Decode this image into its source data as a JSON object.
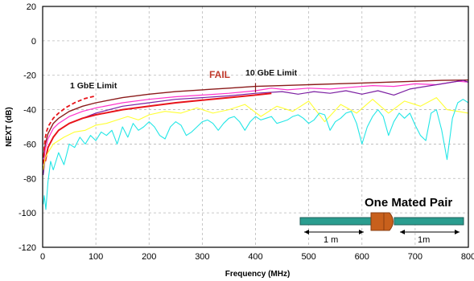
{
  "chart_data": {
    "type": "line",
    "title": "",
    "xlabel": "Frequency (MHz)",
    "ylabel": "NEXT (dB)",
    "xlim": [
      0,
      800
    ],
    "ylim": [
      -120,
      20
    ],
    "x_ticks": [
      0,
      100,
      200,
      300,
      400,
      500,
      600,
      700,
      800
    ],
    "y_ticks": [
      20,
      0,
      -20,
      -40,
      -60,
      -80,
      -100,
      -120
    ],
    "grid": true,
    "colors": {
      "maroon": "#8b1a1a",
      "magenta": "#ff33cc",
      "purple": "#7b1fa2",
      "red": "#e8141a",
      "yellow": "#ffff33",
      "cyan": "#22e6e6",
      "frame": "#000000",
      "grid": "#b8b8b8",
      "fail": "#c0392b",
      "cable": "#2a9d8f",
      "cable_dark": "#1d5e58",
      "connector": "#c8601c"
    },
    "series": [
      {
        "color_key": "maroon",
        "style": "solid",
        "width": 1.4,
        "x": [
          1,
          5,
          10,
          20,
          30,
          50,
          75,
          100,
          150,
          200,
          250,
          300,
          350,
          400,
          450,
          500,
          550,
          600,
          650,
          700,
          750,
          800
        ],
        "y": [
          -68,
          -60,
          -54,
          -48,
          -45,
          -41,
          -38,
          -36,
          -33,
          -31,
          -29.5,
          -28.5,
          -27.5,
          -26.5,
          -26,
          -25.5,
          -25,
          -24.5,
          -24,
          -23.5,
          -23,
          -22.8
        ]
      },
      {
        "color_key": "magenta",
        "style": "solid",
        "width": 1.2,
        "x": [
          1,
          5,
          10,
          20,
          30,
          50,
          75,
          100,
          150,
          200,
          250,
          300,
          350,
          400,
          430,
          460,
          500,
          540,
          580,
          620,
          660,
          700,
          740,
          780,
          800
        ],
        "y": [
          -72,
          -63,
          -57,
          -51,
          -48,
          -44,
          -41,
          -39,
          -36,
          -34,
          -32.5,
          -31.5,
          -30.5,
          -29,
          -27.5,
          -28.5,
          -27.5,
          -28,
          -27,
          -26,
          -26.5,
          -25,
          -25.5,
          -23.5,
          -24
        ]
      },
      {
        "color_key": "purple",
        "style": "solid",
        "width": 1.2,
        "x": [
          1,
          5,
          10,
          20,
          30,
          50,
          75,
          100,
          150,
          200,
          250,
          300,
          350,
          400,
          450,
          480,
          510,
          540,
          570,
          600,
          630,
          660,
          690,
          720,
          760,
          790,
          800
        ],
        "y": [
          -78,
          -68,
          -62,
          -56,
          -52,
          -48,
          -45,
          -42,
          -38,
          -36,
          -34,
          -33,
          -32,
          -30.5,
          -29.5,
          -31,
          -29.5,
          -30.5,
          -29,
          -31,
          -29,
          -31.5,
          -28,
          -26.5,
          -24.5,
          -23,
          -24
        ]
      },
      {
        "color_key": "red",
        "style": "solid",
        "width": 2.0,
        "x": [
          5,
          10,
          20,
          30,
          50,
          75,
          100,
          150,
          200,
          250,
          300,
          350,
          400,
          430
        ],
        "y": [
          -70,
          -62,
          -56,
          -52,
          -48,
          -45,
          -43,
          -40,
          -38,
          -36,
          -34.5,
          -33,
          -31.5,
          -30.5
        ]
      },
      {
        "color_key": "red",
        "style": "dashed",
        "width": 1.8,
        "x": [
          1,
          3,
          5,
          8,
          12,
          20,
          30,
          45,
          60,
          80,
          100
        ],
        "y": [
          -75,
          -62,
          -56,
          -52,
          -49,
          -45,
          -42,
          -38.5,
          -36,
          -33.5,
          -32
        ]
      },
      {
        "color_key": "maroon",
        "style": "solid",
        "width": 1.2,
        "x": [
          400,
          400
        ],
        "y": [
          -24.5,
          -30
        ]
      },
      {
        "color_key": "yellow",
        "style": "solid",
        "width": 1.1,
        "x": [
          1,
          5,
          10,
          20,
          40,
          60,
          80,
          100,
          120,
          140,
          160,
          180,
          200,
          230,
          260,
          290,
          320,
          350,
          380,
          410,
          440,
          470,
          500,
          530,
          560,
          590,
          620,
          650,
          680,
          710,
          740,
          760,
          780,
          800
        ],
        "y": [
          -75,
          -68,
          -65,
          -60,
          -56,
          -53,
          -52,
          -49,
          -48,
          -46,
          -44,
          -46,
          -43,
          -41,
          -42,
          -39,
          -42,
          -40,
          -37,
          -44,
          -38,
          -41,
          -35,
          -47,
          -37,
          -42,
          -34,
          -42,
          -35,
          -38,
          -33,
          -40,
          -41,
          -42
        ]
      },
      {
        "color_key": "cyan",
        "style": "solid",
        "width": 1.1,
        "x": [
          1,
          3,
          6,
          10,
          15,
          20,
          30,
          40,
          50,
          60,
          70,
          80,
          90,
          100,
          110,
          120,
          130,
          140,
          150,
          160,
          170,
          180,
          190,
          200,
          210,
          220,
          230,
          240,
          250,
          260,
          270,
          280,
          290,
          300,
          310,
          320,
          330,
          340,
          350,
          360,
          370,
          380,
          390,
          400,
          410,
          420,
          430,
          440,
          450,
          460,
          470,
          480,
          490,
          500,
          510,
          520,
          530,
          540,
          550,
          560,
          570,
          580,
          590,
          600,
          610,
          620,
          630,
          640,
          650,
          660,
          670,
          680,
          690,
          700,
          710,
          720,
          730,
          740,
          750,
          760,
          770,
          780,
          790,
          800
        ],
        "y": [
          -95,
          -90,
          -98,
          -82,
          -70,
          -75,
          -65,
          -72,
          -60,
          -62,
          -56,
          -60,
          -55,
          -58,
          -53,
          -55,
          -52,
          -60,
          -50,
          -56,
          -48,
          -52,
          -50,
          -47,
          -50,
          -55,
          -57,
          -50,
          -47,
          -49,
          -55,
          -53,
          -50,
          -47,
          -46,
          -48,
          -52,
          -48,
          -45,
          -44,
          -47,
          -52,
          -47,
          -44,
          -46,
          -45,
          -44,
          -48,
          -47,
          -46,
          -44,
          -43,
          -45,
          -48,
          -46,
          -42,
          -43,
          -52,
          -47,
          -45,
          -42,
          -41,
          -48,
          -60,
          -50,
          -44,
          -40,
          -44,
          -55,
          -47,
          -42,
          -45,
          -42,
          -49,
          -55,
          -58,
          -42,
          -40,
          -52,
          -69,
          -45,
          -36,
          -34,
          -36
        ]
      }
    ],
    "annotations": {
      "limit_1g": "1 GbE Limit",
      "limit_10g": "10 GbE Limit",
      "fail": "FAIL"
    },
    "inset": {
      "title": "One Mated Pair",
      "left_length": "1 m",
      "right_length": "1m"
    }
  }
}
